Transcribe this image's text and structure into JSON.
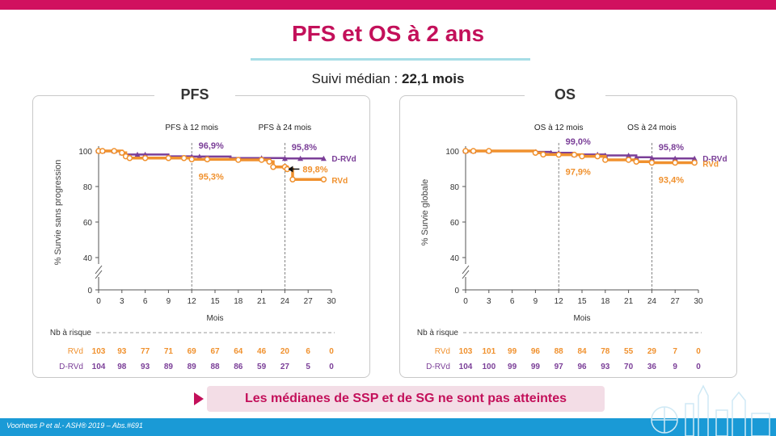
{
  "title": "PFS et OS à 2 ans",
  "subtitle_label": "Suivi médian : ",
  "subtitle_value": "22,1 mois",
  "callout": "Les médianes de SSP et de SG ne sont pas atteintes",
  "footer": "Voorhees P et al.- ASH® 2019 – Abs.#691",
  "colors": {
    "rvd": "#f0912e",
    "drvd": "#7b3f98",
    "accent": "#c3105a",
    "footer": "#1a9ad6"
  },
  "chart_data": [
    {
      "type": "line",
      "panel_title": "PFS",
      "xlabel": "Mois",
      "ylabel": "% Survie sans progression",
      "xticks": [
        0,
        3,
        6,
        9,
        12,
        15,
        18,
        21,
        24,
        27,
        30
      ],
      "yticks": [
        0,
        40,
        60,
        80,
        100
      ],
      "xlim": [
        0,
        30
      ],
      "axis_break": true,
      "series": [
        {
          "name": "D-RVd",
          "color": "#7b3f98",
          "marker": "triangle",
          "x": [
            0,
            0.5,
            2,
            3,
            3.5,
            5,
            6,
            9,
            12,
            13,
            17,
            21,
            24,
            26,
            29
          ],
          "y": [
            100,
            100,
            100,
            99,
            98,
            98,
            98,
            97,
            96.9,
            96.9,
            96,
            96,
            95.8,
            95.8,
            95.8
          ]
        },
        {
          "name": "RVd",
          "color": "#f0912e",
          "marker": "circle",
          "x": [
            0,
            0.5,
            2,
            3,
            3.5,
            4,
            6,
            9,
            11,
            12,
            14,
            18,
            21,
            22,
            22.5,
            24,
            24.3,
            25,
            29
          ],
          "y": [
            100,
            100,
            100,
            99,
            97,
            96,
            96,
            96,
            96,
            95.3,
            95.3,
            95,
            95,
            94,
            91,
            91,
            89.8,
            84,
            84
          ]
        }
      ],
      "row_labels": [
        "RVd",
        "D-RVd"
      ],
      "at_risk_label": "Nb à risque",
      "at_risk_x": [
        0,
        3,
        6,
        9,
        12,
        15,
        18,
        21,
        24,
        27,
        30
      ],
      "at_risk": [
        [
          "103",
          "93",
          "77",
          "71",
          "69",
          "67",
          "64",
          "46",
          "20",
          "6",
          "0"
        ],
        [
          "104",
          "98",
          "93",
          "89",
          "89",
          "88",
          "86",
          "59",
          "27",
          "5",
          "0"
        ]
      ],
      "markers": [
        {
          "x": 12,
          "label": "PFS à 12 mois"
        },
        {
          "x": 24,
          "label": "PFS à 24 mois"
        }
      ],
      "annotations": [
        {
          "text": "96,9%",
          "x": 12,
          "y": 96.9,
          "series": "D-RVd",
          "pos": "above"
        },
        {
          "text": "95,3%",
          "x": 12,
          "y": 95.3,
          "series": "RVd",
          "pos": "below"
        },
        {
          "text": "95,8%",
          "x": 24,
          "y": 95.8,
          "series": "D-RVd",
          "pos": "above"
        },
        {
          "text": "89,8%",
          "x": 24,
          "y": 89.8,
          "series": "RVd",
          "pos": "right-arrow"
        }
      ]
    },
    {
      "type": "line",
      "panel_title": "OS",
      "xlabel": "Mois",
      "ylabel": "% Survie globale",
      "xticks": [
        0,
        3,
        6,
        9,
        12,
        15,
        18,
        21,
        24,
        27,
        30
      ],
      "yticks": [
        0,
        40,
        60,
        80,
        100
      ],
      "xlim": [
        0,
        30
      ],
      "axis_break": true,
      "series": [
        {
          "name": "D-RVd",
          "color": "#7b3f98",
          "marker": "triangle",
          "x": [
            0,
            1,
            3,
            9,
            11,
            12,
            14,
            17,
            18,
            21,
            22,
            24,
            27,
            29.5
          ],
          "y": [
            100,
            100,
            100,
            99.5,
            99,
            99,
            98,
            98,
            97.5,
            97.5,
            96.5,
            95.8,
            95.8,
            95.8
          ]
        },
        {
          "name": "RVd",
          "color": "#f0912e",
          "marker": "circle",
          "x": [
            0,
            1,
            3,
            9,
            10,
            12,
            14,
            15,
            17,
            18,
            21,
            22,
            24,
            27,
            29.5
          ],
          "y": [
            100,
            100,
            100,
            99,
            98,
            97.9,
            97.9,
            97,
            97,
            95,
            95,
            94,
            93.4,
            93.4,
            93.4
          ]
        }
      ],
      "row_labels": [
        "RVd",
        "D-RVd"
      ],
      "at_risk_label": "Nb à risque",
      "at_risk_x": [
        0,
        3,
        6,
        9,
        12,
        15,
        18,
        21,
        24,
        27,
        30
      ],
      "at_risk": [
        [
          "103",
          "101",
          "99",
          "96",
          "88",
          "84",
          "78",
          "55",
          "29",
          "7",
          "0"
        ],
        [
          "104",
          "100",
          "99",
          "99",
          "97",
          "96",
          "93",
          "70",
          "36",
          "9",
          "0"
        ]
      ],
      "markers": [
        {
          "x": 12,
          "label": "OS à 12 mois"
        },
        {
          "x": 24,
          "label": "OS à 24 mois"
        }
      ],
      "annotations": [
        {
          "text": "99,0%",
          "x": 12,
          "y": 99.0,
          "series": "D-RVd",
          "pos": "above"
        },
        {
          "text": "97,9%",
          "x": 12,
          "y": 97.9,
          "series": "RVd",
          "pos": "below"
        },
        {
          "text": "95,8%",
          "x": 24,
          "y": 95.8,
          "series": "D-RVd",
          "pos": "above"
        },
        {
          "text": "93,4%",
          "x": 24,
          "y": 93.4,
          "series": "RVd",
          "pos": "below"
        }
      ]
    }
  ]
}
